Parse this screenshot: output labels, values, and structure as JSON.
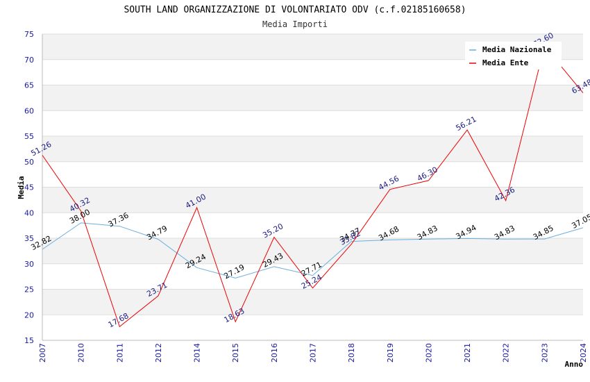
{
  "chart_data": {
    "type": "line",
    "title": "SOUTH LAND ORGANIZZAZIONE DI VOLONTARIATO ODV (c.f.02185160658)",
    "subtitle": "Media Importi",
    "xlabel": "Anno",
    "ylabel": "Media",
    "ylim": [
      15,
      75
    ],
    "yticks": [
      "15",
      "20",
      "25",
      "30",
      "35",
      "40",
      "45",
      "50",
      "55",
      "60",
      "65",
      "70",
      "75"
    ],
    "categories": [
      "2007",
      "2010",
      "2011",
      "2012",
      "2014",
      "2015",
      "2016",
      "2017",
      "2018",
      "2019",
      "2020",
      "2021",
      "2022",
      "2023",
      "2024"
    ],
    "series": [
      {
        "name": "Media Nazionale",
        "color": "#6aaee0",
        "label_color": "#000000",
        "values": [
          32.82,
          38.0,
          37.36,
          34.79,
          29.24,
          27.19,
          29.43,
          27.71,
          34.37,
          34.68,
          34.83,
          34.94,
          34.83,
          34.85,
          37.05
        ],
        "labels": [
          "32.82",
          "38.00",
          "37.36",
          "34.79",
          "29.24",
          "27.19",
          "29.43",
          "27.71",
          "34.37",
          "34.68",
          "34.83",
          "34.94",
          "34.83",
          "34.85",
          "37.05"
        ]
      },
      {
        "name": "Media Ente",
        "color": "#ee0000",
        "label_color": "#1a1a80",
        "values": [
          51.26,
          40.32,
          17.68,
          23.71,
          41.0,
          18.63,
          35.2,
          25.24,
          33.82,
          44.56,
          46.3,
          56.21,
          42.36,
          72.6,
          63.48
        ],
        "labels": [
          "51.26",
          "40.32",
          "17.68",
          "23.71",
          "41.00",
          "18.63",
          "35.20",
          "25.24",
          "33.82",
          "44.56",
          "46.30",
          "56.21",
          "42.36",
          "72.60",
          "63.48"
        ]
      }
    ],
    "legend": "top-right",
    "grid": true,
    "colors": {
      "band": "#f2f2f2",
      "grid": "#dddddd",
      "x_tick": "#1a1aa0",
      "y_tick": "#1a1aa0"
    }
  }
}
